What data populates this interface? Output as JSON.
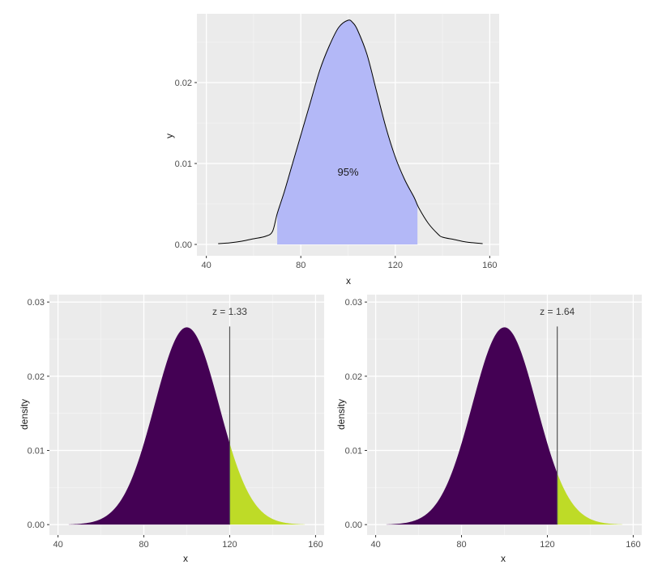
{
  "colors": {
    "panel_bg": "#EBEBEB",
    "grid_major": "#FFFFFF",
    "grid_minor": "#F5F5F5",
    "shade_95": "#B3B8F7",
    "body_fill": "#440154",
    "tail_fill": "#BEDB27",
    "curve": "#000000",
    "zline": "#555555"
  },
  "chart_data": [
    {
      "type": "area",
      "title": "",
      "xlabel": "x",
      "ylabel": "y",
      "xlim": [
        36,
        164
      ],
      "ylim": [
        -0.0014,
        0.0285
      ],
      "x_ticks": [
        40,
        80,
        120,
        160
      ],
      "x_tick_labels": [
        "40",
        "80",
        "120",
        "160"
      ],
      "y_ticks": [
        0,
        0.01,
        0.02
      ],
      "y_tick_labels": [
        "0.00",
        "0.01",
        "0.02"
      ],
      "grid": true,
      "curve": {
        "x": [
          45,
          50,
          55,
          60,
          65,
          68,
          70,
          73,
          76,
          80,
          84,
          88,
          92,
          96,
          100,
          102,
          104,
          108,
          112,
          116,
          120,
          124,
          128,
          130,
          134,
          138,
          140,
          145,
          150,
          157
        ],
        "y": [
          0.0001,
          0.0002,
          0.0004,
          0.0007,
          0.001,
          0.0016,
          0.0038,
          0.0065,
          0.0095,
          0.0135,
          0.0175,
          0.0215,
          0.0245,
          0.0268,
          0.0277,
          0.0274,
          0.0265,
          0.0235,
          0.019,
          0.0145,
          0.0108,
          0.008,
          0.0058,
          0.0045,
          0.0026,
          0.0013,
          0.0009,
          0.0006,
          0.0003,
          0.0001
        ]
      },
      "shaded_region": {
        "from": 70,
        "to": 129.4,
        "label": "95%"
      },
      "annotation_pos": [
        100,
        0.0089
      ]
    },
    {
      "type": "area",
      "title": "",
      "xlabel": "x",
      "ylabel": "density",
      "xlim": [
        36,
        164
      ],
      "ylim": [
        -0.0014,
        0.031
      ],
      "x_ticks": [
        40,
        80,
        120,
        160
      ],
      "x_tick_labels": [
        "40",
        "80",
        "120",
        "160"
      ],
      "y_ticks": [
        0,
        0.01,
        0.02,
        0.03
      ],
      "y_tick_labels": [
        "0.00",
        "0.01",
        "0.02",
        "0.03"
      ],
      "grid": true,
      "distribution": {
        "kind": "normal",
        "mean": 100,
        "sd": 15,
        "x_min": 45,
        "x_max": 155
      },
      "threshold_x": 120,
      "z_prefix": "z =",
      "z_value": "1.33",
      "label_y": 0.0287,
      "line_top": 0.0267
    },
    {
      "type": "area",
      "title": "",
      "xlabel": "x",
      "ylabel": "density",
      "xlim": [
        36,
        164
      ],
      "ylim": [
        -0.0014,
        0.031
      ],
      "x_ticks": [
        40,
        80,
        120,
        160
      ],
      "x_tick_labels": [
        "40",
        "80",
        "120",
        "160"
      ],
      "y_ticks": [
        0,
        0.01,
        0.02,
        0.03
      ],
      "y_tick_labels": [
        "0.00",
        "0.01",
        "0.02",
        "0.03"
      ],
      "grid": true,
      "distribution": {
        "kind": "normal",
        "mean": 100,
        "sd": 15,
        "x_min": 45,
        "x_max": 155
      },
      "threshold_x": 124.6,
      "z_prefix": "z =",
      "z_value": "1.64",
      "label_y": 0.0287,
      "line_top": 0.0267
    }
  ]
}
